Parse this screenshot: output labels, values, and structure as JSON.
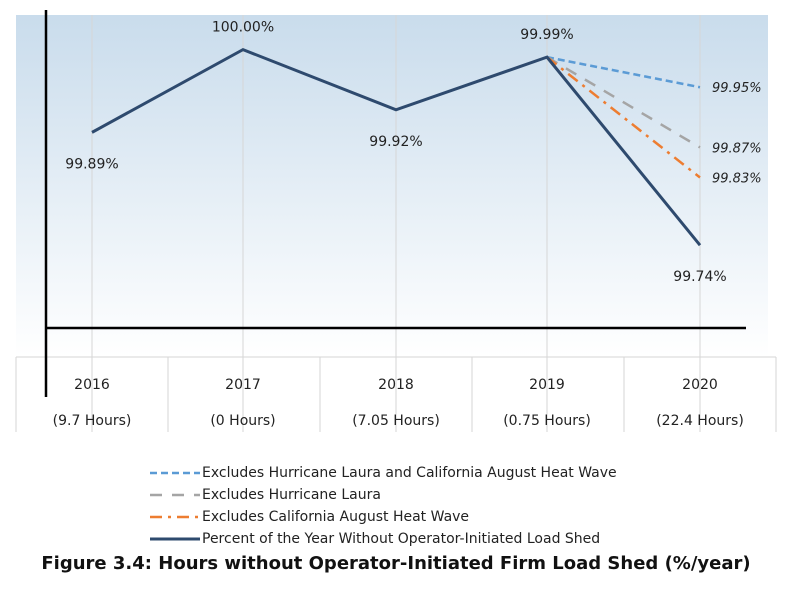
{
  "chart_data": {
    "type": "line",
    "title": "Figure 3.4: Hours without Operator-Initiated Firm Load Shed (%/year)",
    "categories": [
      "2016",
      "2017",
      "2018",
      "2019",
      "2020"
    ],
    "category_sublabels": [
      "(9.7 Hours)",
      "(0 Hours)",
      "(7.05 Hours)",
      "(0.75 Hours)",
      "(22.4 Hours)"
    ],
    "ylim": [
      99.63,
      100.046
    ],
    "grid": "vertical",
    "legend_placement": "bottom",
    "series": [
      {
        "name": "Excludes Hurricane Laura and California August Heat Wave",
        "x": [
          "2019",
          "2020"
        ],
        "values": [
          99.99,
          99.95
        ],
        "labels": [
          "",
          "99.95%"
        ],
        "color": "#5b9bd5",
        "style": "dashed"
      },
      {
        "name": "Excludes Hurricane Laura",
        "x": [
          "2019",
          "2020"
        ],
        "values": [
          99.99,
          99.87
        ],
        "labels": [
          "",
          "99.87%"
        ],
        "color": "#a5a5a5",
        "style": "long-dash"
      },
      {
        "name": "Excludes California August Heat Wave",
        "x": [
          "2019",
          "2020"
        ],
        "values": [
          99.99,
          99.83
        ],
        "labels": [
          "",
          "99.83%"
        ],
        "color": "#ed7d31",
        "style": "dash-dot"
      },
      {
        "name": "Percent of the Year Without Operator-Initiated Load Shed",
        "x": [
          "2016",
          "2017",
          "2018",
          "2019",
          "2020"
        ],
        "values": [
          99.89,
          100.0,
          99.92,
          99.99,
          99.74
        ],
        "labels": [
          "99.89%",
          "100.00%",
          "99.92%",
          "99.99%",
          "99.74%"
        ],
        "color": "#2e4a6e",
        "style": "solid"
      }
    ]
  }
}
